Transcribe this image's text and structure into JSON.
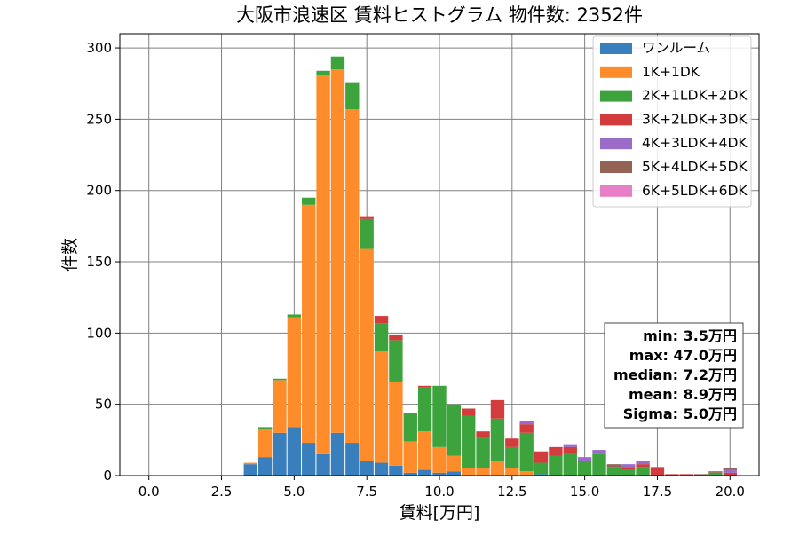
{
  "chart_data": {
    "type": "bar",
    "stacked": true,
    "title": "大阪市浪速区 賃料ヒストグラム  物件数: 2352件",
    "xlabel": "賃料[万円]",
    "ylabel": "件数",
    "xlim": [
      -1.0,
      21.0
    ],
    "ylim": [
      0,
      310
    ],
    "xticks": [
      0.0,
      2.5,
      5.0,
      7.5,
      10.0,
      12.5,
      15.0,
      17.5,
      20.0
    ],
    "xtick_labels": [
      "0.0",
      "2.5",
      "5.0",
      "7.5",
      "10.0",
      "12.5",
      "15.0",
      "17.5",
      "20.0"
    ],
    "yticks": [
      0,
      50,
      100,
      150,
      200,
      250,
      300
    ],
    "ytick_labels": [
      "0",
      "50",
      "100",
      "150",
      "200",
      "250",
      "300"
    ],
    "grid": true,
    "legend_position": "top-right",
    "bin_width": 0.5,
    "bin_starts": [
      3.25,
      3.75,
      4.25,
      4.75,
      5.25,
      5.75,
      6.25,
      6.75,
      7.25,
      7.75,
      8.25,
      8.75,
      9.25,
      9.75,
      10.25,
      10.75,
      11.25,
      11.75,
      12.25,
      12.75,
      13.25,
      13.75,
      14.25,
      14.75,
      15.25,
      15.75,
      16.25,
      16.75,
      17.25,
      17.75,
      18.25,
      18.75,
      19.25,
      19.75
    ],
    "series": [
      {
        "name": "ワンルーム",
        "color": "#3a7fbd",
        "values": [
          8,
          13,
          30,
          34,
          23,
          15,
          30,
          23,
          10,
          9,
          7,
          2,
          4,
          2,
          3,
          0,
          0,
          0,
          0,
          0,
          1,
          0,
          0,
          0,
          0,
          0,
          0,
          0,
          0,
          0,
          0,
          0,
          0,
          0
        ]
      },
      {
        "name": "1K+1DK",
        "color": "#ff8c2a",
        "values": [
          1,
          20,
          37,
          77,
          167,
          266,
          255,
          234,
          149,
          78,
          59,
          22,
          27,
          18,
          11,
          5,
          5,
          10,
          5,
          3,
          0,
          0,
          0,
          0,
          0,
          0,
          0,
          0,
          0,
          0,
          0,
          0,
          0,
          0
        ]
      },
      {
        "name": "2K+1LDK+2DK",
        "color": "#3da33d",
        "values": [
          0,
          1,
          1,
          2,
          5,
          3,
          9,
          19,
          21,
          20,
          29,
          20,
          31,
          43,
          36,
          37,
          22,
          30,
          15,
          27,
          8,
          14,
          16,
          10,
          15,
          6,
          4,
          6,
          0,
          0,
          0,
          0,
          2,
          0
        ]
      },
      {
        "name": "3K+2LDK+3DK",
        "color": "#d33c3c",
        "values": [
          0,
          0,
          0,
          0,
          0,
          0,
          0,
          0,
          2,
          5,
          4,
          0,
          1,
          0,
          0,
          5,
          4,
          13,
          6,
          6,
          8,
          6,
          4,
          0,
          0,
          0,
          2,
          2,
          6,
          1,
          1,
          0,
          0,
          2
        ]
      },
      {
        "name": "4K+3LDK+4DK",
        "color": "#9b6bc8",
        "values": [
          0,
          0,
          0,
          0,
          0,
          0,
          0,
          0,
          0,
          0,
          0,
          0,
          0,
          0,
          0,
          0,
          0,
          0,
          0,
          2,
          0,
          0,
          2,
          3,
          3,
          0,
          2,
          2,
          0,
          0,
          0,
          0,
          0,
          2
        ]
      },
      {
        "name": "5K+4LDK+5DK",
        "color": "#956356",
        "values": [
          0,
          0,
          0,
          0,
          0,
          0,
          0,
          0,
          0,
          0,
          0,
          0,
          0,
          0,
          0,
          0,
          0,
          0,
          0,
          0,
          0,
          0,
          0,
          0,
          0,
          2,
          0,
          0,
          0,
          0,
          0,
          1,
          1,
          1
        ]
      },
      {
        "name": "6K+5LDK+6DK",
        "color": "#e67ec8",
        "values": [
          0,
          0,
          0,
          0,
          0,
          0,
          0,
          0,
          0,
          0,
          0,
          0,
          0,
          0,
          0,
          0,
          0,
          0,
          0,
          0,
          0,
          0,
          0,
          0,
          0,
          0,
          0,
          0,
          0,
          0,
          0,
          0,
          0,
          0
        ]
      }
    ],
    "stats_box": [
      "min: 3.5万円",
      "max: 47.0万円",
      "median: 7.2万円",
      "mean: 8.9万円",
      "Sigma: 5.0万円"
    ]
  }
}
